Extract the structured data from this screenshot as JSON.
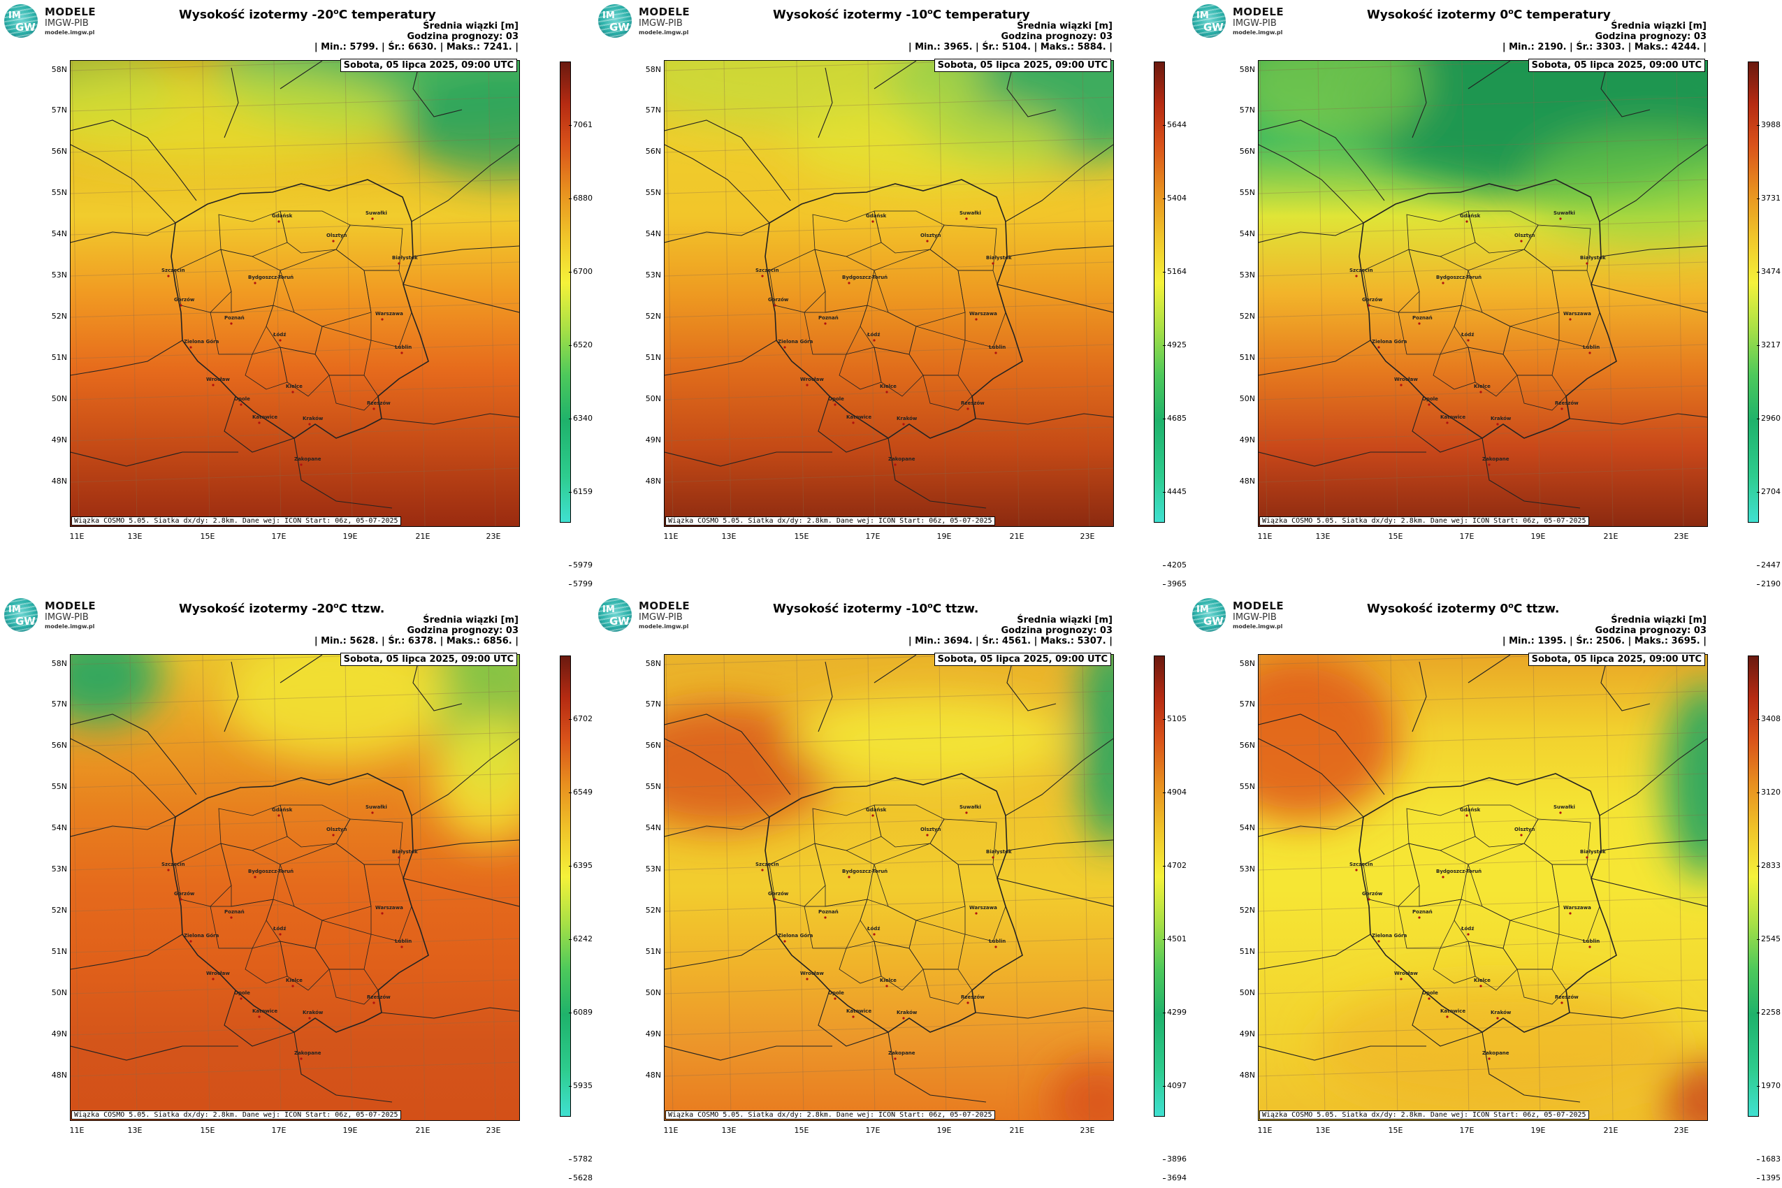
{
  "logo": {
    "line1": "MODELE",
    "line2": "IMGW-PIB",
    "line3": "modele.imgw.pl",
    "mark_top": "IM",
    "mark_bottom": "GW"
  },
  "common": {
    "header_line1": "Średnia wiązki [m]",
    "header_line2": "Godzina prognozy: 03",
    "min_label": "| Min.:",
    "avg_label": "| Śr.:",
    "max_label": "| Maks.:",
    "date": "Sobota, 05 lipca 2025, 09:00 UTC",
    "credits": "Wiązka COSMO 5.05. Siatka dx/dy: 2.8km. Dane wej: ICON Start: 06z, 05-07-2025",
    "lat_labels": [
      "58N",
      "57N",
      "56N",
      "55N",
      "54N",
      "53N",
      "52N",
      "51N",
      "50N",
      "49N",
      "48N"
    ],
    "lon_labels": [
      "11E",
      "13E",
      "15E",
      "17E",
      "19E",
      "21E",
      "23E"
    ],
    "cities": [
      "Gdańsk",
      "Suwałki",
      "Olsztyn",
      "Szczecin",
      "Bydgoszcz-Toruń",
      "Białystok",
      "Gorzów",
      "Poznań",
      "Warszawa",
      "Zielona Góra",
      "Łódź",
      "Lublin",
      "Wrocław",
      "Kielce",
      "Opole",
      "Rzeszów",
      "Katowice",
      "Kraków",
      "Zakopane"
    ]
  },
  "panels": [
    {
      "title_prefix": "Wysokość izotermy -20",
      "title_suffix": "C temperatury",
      "sup": "o",
      "min": "5799.",
      "avg": "6630.",
      "max": "7241.",
      "colorbar": [
        "7061",
        "6880",
        "6700",
        "6520",
        "6340",
        "6159",
        "5979",
        "5799"
      ]
    },
    {
      "title_prefix": "Wysokość izotermy -10",
      "title_suffix": "C temperatury",
      "sup": "o",
      "min": "3965.",
      "avg": "5104.",
      "max": "5884.",
      "colorbar": [
        "5644",
        "5404",
        "5164",
        "4925",
        "4685",
        "4445",
        "4205",
        "3965"
      ]
    },
    {
      "title_prefix": "Wysokość izotermy 0",
      "title_suffix": "C temperatury",
      "sup": "o",
      "min": "2190.",
      "avg": "3303.",
      "max": "4244.",
      "colorbar": [
        "3988",
        "3731",
        "3474",
        "3217",
        "2960",
        "2704",
        "2447",
        "2190"
      ]
    },
    {
      "title_prefix": "Wysokość izotermy -20",
      "title_suffix": "C ttzw.",
      "sup": "o",
      "min": "5628.",
      "avg": "6378.",
      "max": "6856.",
      "colorbar": [
        "6702",
        "6549",
        "6395",
        "6242",
        "6089",
        "5935",
        "5782",
        "5628"
      ]
    },
    {
      "title_prefix": "Wysokość izotermy -10",
      "title_suffix": "C ttzw.",
      "sup": "o",
      "min": "3694.",
      "avg": "4561.",
      "max": "5307.",
      "colorbar": [
        "5105",
        "4904",
        "4702",
        "4501",
        "4299",
        "4097",
        "3896",
        "3694"
      ]
    },
    {
      "title_prefix": "Wysokość izotermy 0",
      "title_suffix": "C ttzw.",
      "sup": "o",
      "min": "1395.",
      "avg": "2506.",
      "max": "3695.",
      "colorbar": [
        "3408",
        "3120",
        "2833",
        "2545",
        "2258",
        "1970",
        "1683",
        "1395"
      ]
    }
  ],
  "colors": {
    "low": "#40e0d0",
    "mid": "#f5f23a",
    "high": "#6a1a10"
  }
}
